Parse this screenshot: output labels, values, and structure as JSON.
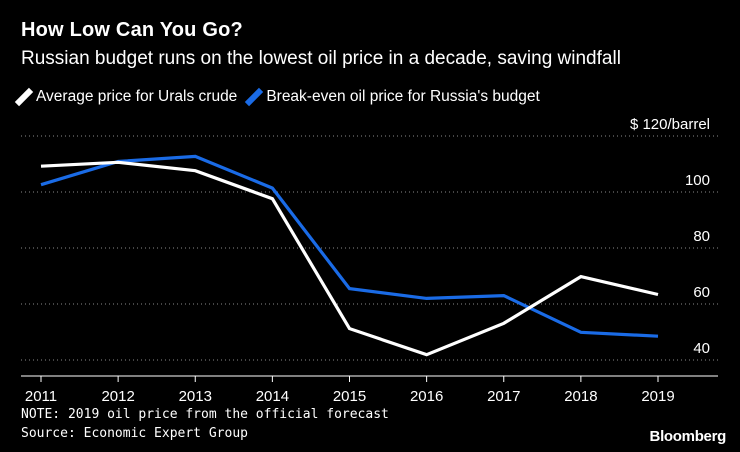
{
  "title": "How Low Can You Go?",
  "subtitle": "Russian budget runs on the lowest oil price in a decade, saving windfall",
  "note": "NOTE: 2019 oil price from the official forecast",
  "source": "Source: Economic Expert Group",
  "brand": "Bloomberg",
  "chart_data": {
    "type": "line",
    "x": [
      "2011",
      "2012",
      "2013",
      "2014",
      "2015",
      "2016",
      "2017",
      "2018",
      "2019"
    ],
    "series": [
      {
        "name": "Average price for Urals crude",
        "color": "#ffffff",
        "values": [
          109.2,
          110.6,
          107.6,
          97.6,
          51.2,
          41.9,
          53.1,
          69.8,
          63.4
        ]
      },
      {
        "name": "Break-even oil price for Russia's budget",
        "color": "#1a6be6",
        "values": [
          102.6,
          110.9,
          112.7,
          101.4,
          65.5,
          62.0,
          63.0,
          49.9,
          48.5
        ]
      }
    ],
    "ylim": [
      35,
      125
    ],
    "yticks": [
      40,
      60,
      80,
      100,
      120
    ],
    "ytick_labels": [
      "40",
      "60",
      "80",
      "100",
      "$ 120/barrel"
    ],
    "grid": true,
    "legend": "top-left"
  }
}
